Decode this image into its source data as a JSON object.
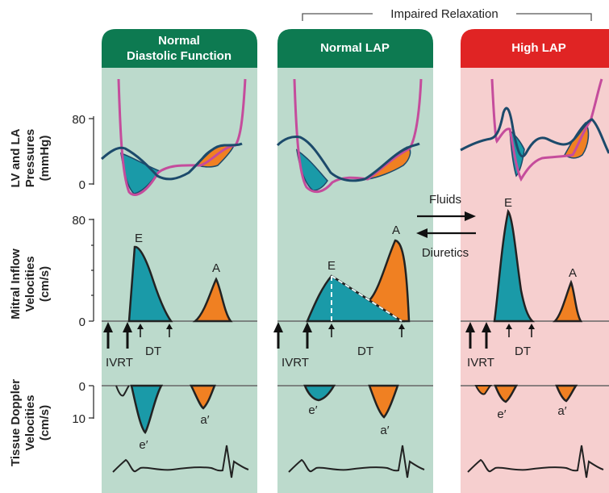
{
  "group_label": "Impaired Relaxation",
  "colors": {
    "panel_green": "#bcdacc",
    "panel_pink": "#f6cfcf",
    "header_green": "#0d7a51",
    "header_red": "#e02424",
    "lv_curve": "#c54c9c",
    "la_curve": "#1c4a6b",
    "teal_fill": "#1a9aa8",
    "orange_fill": "#f08022"
  },
  "panels": [
    {
      "title_line1": "Normal",
      "title_line2": "Diastolic Function",
      "ivrt": "IVRT",
      "dt": "DT",
      "e_label": "E",
      "a_label": "A",
      "e_prime": "e′",
      "a_prime": "a′"
    },
    {
      "title_line1": "Normal LAP",
      "title_line2": "",
      "ivrt": "IVRT",
      "dt": "DT",
      "e_label": "E",
      "a_label": "A",
      "e_prime": "e′",
      "a_prime": "a′"
    },
    {
      "title_line1": "High LAP",
      "title_line2": "",
      "ivrt": "IVRT",
      "dt": "DT",
      "e_label": "E",
      "a_label": "A",
      "e_prime": "e′",
      "a_prime": "a′"
    }
  ],
  "row_labels": {
    "pressures_line1": "LV and LA",
    "pressures_line2": "Pressures",
    "pressures_line3": "(mmHg)",
    "mitral_line1": "Mitral Inflow",
    "mitral_line2": "Velocities",
    "mitral_line3": "(cm/s)",
    "tissue_line1": "Tissue Doppler",
    "tissue_line2": "Velocities",
    "tissue_line3": "(cm/s)"
  },
  "ticks": {
    "pressure_high": "80",
    "pressure_low": "0",
    "mitral_high": "80",
    "mitral_low": "0",
    "tissue_zero": "0",
    "tissue_ten": "10"
  },
  "arrows": {
    "fluids": "Fluids",
    "diuretics": "Diuretics"
  }
}
